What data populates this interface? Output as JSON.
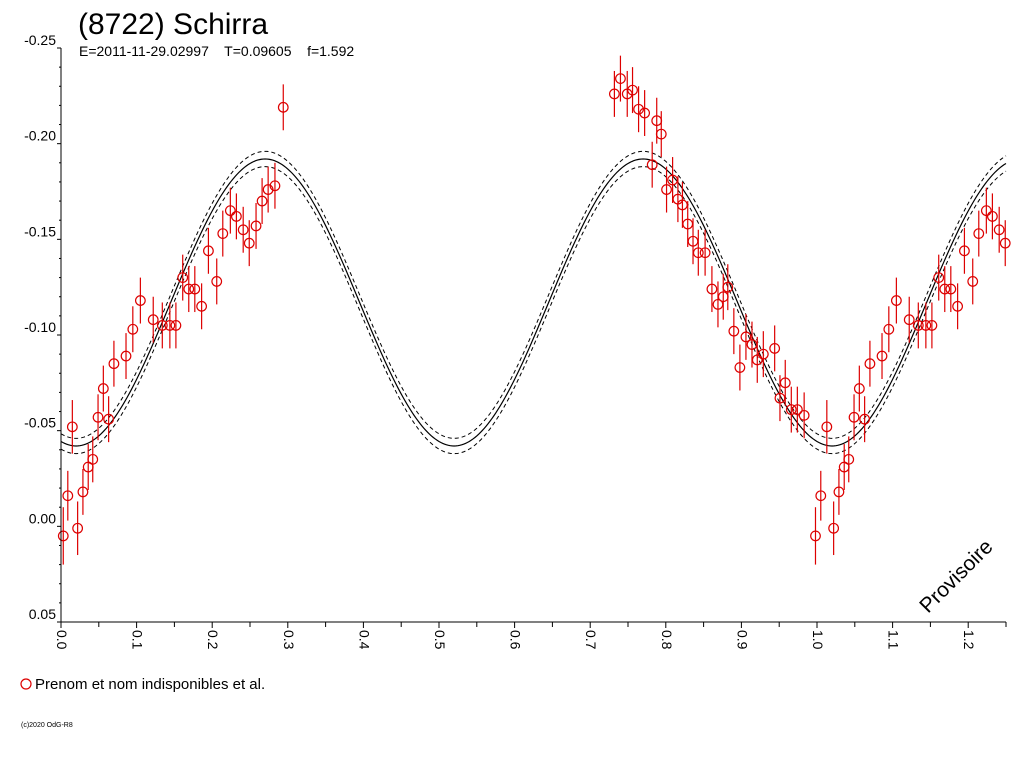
{
  "chart_data": {
    "type": "scatter",
    "title": "(8722) Schirra",
    "subtitle": "E=2011-11-29.02997    T=0.09605    f=1.592",
    "xlabel": "",
    "ylabel": "",
    "xlim": [
      0,
      1.25
    ],
    "ylim": [
      -0.25,
      0.05
    ],
    "y_inverted": true,
    "grid": false,
    "x_ticks": [
      "0.0",
      "0.1",
      "0.2",
      "0.3",
      "0.4",
      "0.5",
      "0.6",
      "0.7",
      "0.8",
      "0.9",
      "1.0",
      "1.1",
      "1.2"
    ],
    "y_ticks": [
      "-0.25",
      "-0.20",
      "-0.15",
      "-0.10",
      "-0.05",
      "0.00",
      "0.05"
    ],
    "legend": {
      "label": "Prenom et nom indisponibles et al.",
      "placement": "bottom-left"
    },
    "annotation": "Provisoire",
    "copyright": "(c)2020 OdG-R8",
    "colors": {
      "points": "#dd0000",
      "fit": "#000000",
      "axes": "#000000"
    },
    "fit_curve": {
      "mean": -0.117,
      "amplitude": 0.075,
      "phase_of_first_maximum": 0.27,
      "harmonic": 2,
      "envelope_offset": 0.004
    },
    "series": [
      {
        "name": "Prenom et nom indisponibles et al.",
        "points": [
          [
            0.003,
            0.005,
            0.015
          ],
          [
            0.009,
            -0.016,
            0.013
          ],
          [
            0.015,
            -0.052,
            0.014
          ],
          [
            0.022,
            0.001,
            0.014
          ],
          [
            0.029,
            -0.018,
            0.012
          ],
          [
            0.036,
            -0.031,
            0.012
          ],
          [
            0.042,
            -0.035,
            0.012
          ],
          [
            0.049,
            -0.057,
            0.012
          ],
          [
            0.056,
            -0.072,
            0.012
          ],
          [
            0.063,
            -0.056,
            0.012
          ],
          [
            0.07,
            -0.085,
            0.012
          ],
          [
            0.086,
            -0.089,
            0.012
          ],
          [
            0.095,
            -0.103,
            0.012
          ],
          [
            0.105,
            -0.118,
            0.012
          ],
          [
            0.122,
            -0.108,
            0.012
          ],
          [
            0.134,
            -0.105,
            0.012
          ],
          [
            0.144,
            -0.105,
            0.012
          ],
          [
            0.152,
            -0.105,
            0.012
          ],
          [
            0.161,
            -0.13,
            0.012
          ],
          [
            0.169,
            -0.124,
            0.012
          ],
          [
            0.177,
            -0.124,
            0.012
          ],
          [
            0.186,
            -0.115,
            0.012
          ],
          [
            0.195,
            -0.144,
            0.012
          ],
          [
            0.206,
            -0.128,
            0.012
          ],
          [
            0.214,
            -0.153,
            0.012
          ],
          [
            0.224,
            -0.165,
            0.012
          ],
          [
            0.232,
            -0.162,
            0.012
          ],
          [
            0.241,
            -0.155,
            0.012
          ],
          [
            0.249,
            -0.148,
            0.012
          ],
          [
            0.258,
            -0.157,
            0.012
          ],
          [
            0.266,
            -0.17,
            0.012
          ],
          [
            0.274,
            -0.176,
            0.012
          ],
          [
            0.283,
            -0.178,
            0.012
          ],
          [
            0.294,
            -0.219,
            0.012
          ],
          [
            0.732,
            -0.226,
            0.012
          ],
          [
            0.74,
            -0.234,
            0.012
          ],
          [
            0.749,
            -0.226,
            0.012
          ],
          [
            0.756,
            -0.228,
            0.012
          ],
          [
            0.764,
            -0.218,
            0.012
          ],
          [
            0.772,
            -0.216,
            0.012
          ],
          [
            0.782,
            -0.189,
            0.012
          ],
          [
            0.788,
            -0.212,
            0.012
          ],
          [
            0.794,
            -0.205,
            0.012
          ],
          [
            0.801,
            -0.176,
            0.012
          ],
          [
            0.809,
            -0.181,
            0.012
          ],
          [
            0.816,
            -0.171,
            0.012
          ],
          [
            0.822,
            -0.168,
            0.012
          ],
          [
            0.829,
            -0.158,
            0.012
          ],
          [
            0.836,
            -0.149,
            0.012
          ],
          [
            0.843,
            -0.143,
            0.012
          ],
          [
            0.852,
            -0.143,
            0.012
          ],
          [
            0.861,
            -0.124,
            0.012
          ],
          [
            0.869,
            -0.116,
            0.012
          ],
          [
            0.876,
            -0.12,
            0.012
          ],
          [
            0.882,
            -0.125,
            0.012
          ],
          [
            0.89,
            -0.102,
            0.012
          ],
          [
            0.898,
            -0.083,
            0.012
          ],
          [
            0.906,
            -0.099,
            0.012
          ],
          [
            0.914,
            -0.095,
            0.012
          ],
          [
            0.921,
            -0.087,
            0.012
          ],
          [
            0.929,
            -0.09,
            0.012
          ],
          [
            0.944,
            -0.093,
            0.012
          ],
          [
            0.951,
            -0.067,
            0.012
          ],
          [
            0.958,
            -0.075,
            0.012
          ],
          [
            0.966,
            -0.061,
            0.012
          ],
          [
            0.974,
            -0.061,
            0.012
          ],
          [
            0.983,
            -0.058,
            0.012
          ],
          [
            0.998,
            0.005,
            0.015
          ],
          [
            1.005,
            -0.016,
            0.013
          ],
          [
            1.013,
            -0.052,
            0.014
          ],
          [
            1.022,
            0.001,
            0.014
          ],
          [
            1.029,
            -0.018,
            0.012
          ],
          [
            1.036,
            -0.031,
            0.012
          ],
          [
            1.042,
            -0.035,
            0.012
          ],
          [
            1.049,
            -0.057,
            0.012
          ],
          [
            1.056,
            -0.072,
            0.012
          ],
          [
            1.063,
            -0.056,
            0.012
          ],
          [
            1.07,
            -0.085,
            0.012
          ],
          [
            1.086,
            -0.089,
            0.012
          ],
          [
            1.095,
            -0.103,
            0.012
          ],
          [
            1.105,
            -0.118,
            0.012
          ],
          [
            1.122,
            -0.108,
            0.012
          ],
          [
            1.134,
            -0.105,
            0.012
          ],
          [
            1.144,
            -0.105,
            0.012
          ],
          [
            1.152,
            -0.105,
            0.012
          ],
          [
            1.161,
            -0.13,
            0.012
          ],
          [
            1.169,
            -0.124,
            0.012
          ],
          [
            1.177,
            -0.124,
            0.012
          ],
          [
            1.186,
            -0.115,
            0.012
          ],
          [
            1.195,
            -0.144,
            0.012
          ],
          [
            1.206,
            -0.128,
            0.012
          ],
          [
            1.214,
            -0.153,
            0.012
          ],
          [
            1.224,
            -0.165,
            0.012
          ],
          [
            1.232,
            -0.162,
            0.012
          ],
          [
            1.241,
            -0.155,
            0.012
          ],
          [
            1.249,
            -0.148,
            0.012
          ]
        ]
      }
    ]
  }
}
